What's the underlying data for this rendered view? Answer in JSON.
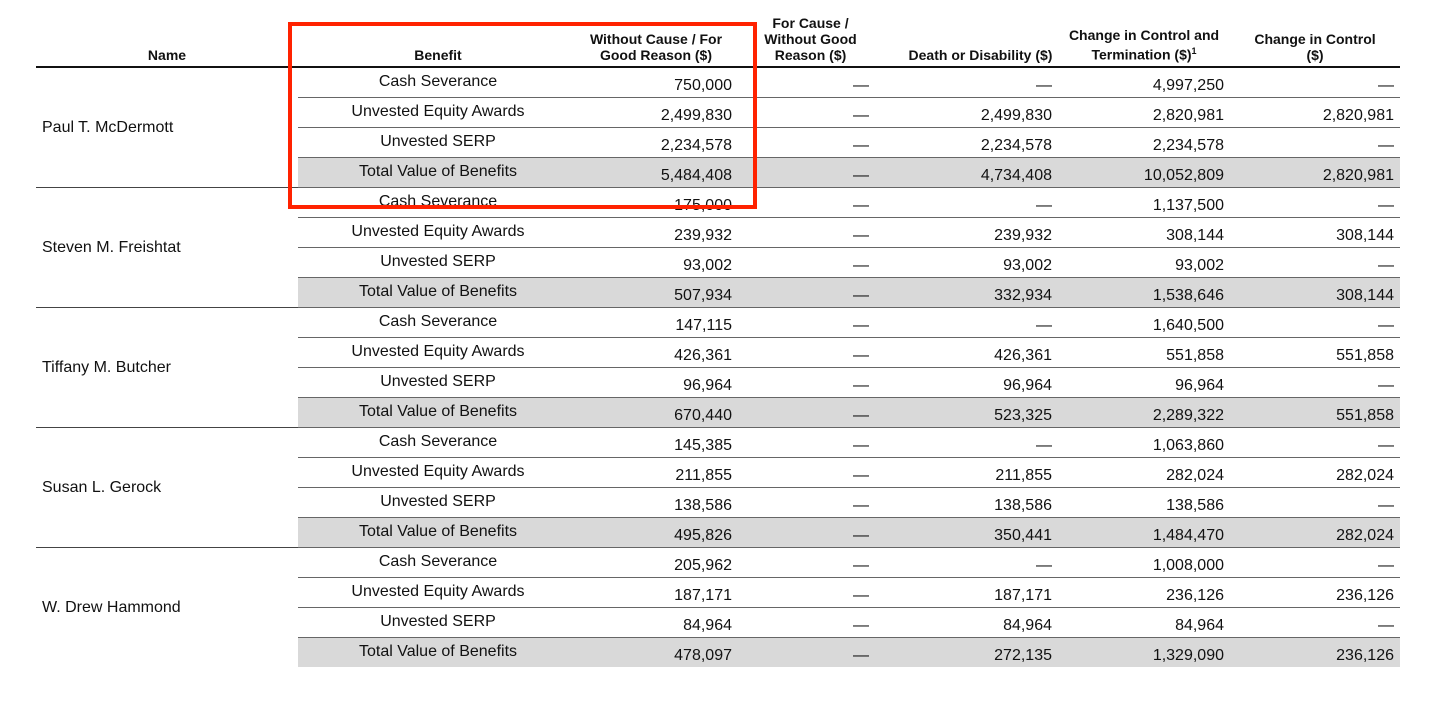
{
  "header": {
    "name": "Name",
    "benefit": "Benefit",
    "columns": [
      "Without Cause / For Good Reason ($)",
      "For Cause / Without Good Reason ($)",
      "Death or Disability ($)",
      "Change in Control and Termination ($)",
      "Change in Control ($)"
    ],
    "footnote_mark": "1"
  },
  "groups": [
    {
      "name": "Paul T. McDermott",
      "rows": [
        {
          "benefit": "Cash Severance",
          "values": [
            "750,000",
            "—",
            "—",
            "4,997,250",
            "—"
          ]
        },
        {
          "benefit": "Unvested Equity Awards",
          "values": [
            "2,499,830",
            "—",
            "2,499,830",
            "2,820,981",
            "2,820,981"
          ]
        },
        {
          "benefit": "Unvested SERP",
          "values": [
            "2,234,578",
            "—",
            "2,234,578",
            "2,234,578",
            "—"
          ]
        },
        {
          "benefit": "Total Value of Benefits",
          "values": [
            "5,484,408",
            "—",
            "4,734,408",
            "10,052,809",
            "2,820,981"
          ]
        }
      ]
    },
    {
      "name": "Steven M. Freishtat",
      "rows": [
        {
          "benefit": "Cash Severance",
          "values": [
            "175,000",
            "—",
            "—",
            "1,137,500",
            "—"
          ]
        },
        {
          "benefit": "Unvested Equity Awards",
          "values": [
            "239,932",
            "—",
            "239,932",
            "308,144",
            "308,144"
          ]
        },
        {
          "benefit": "Unvested SERP",
          "values": [
            "93,002",
            "—",
            "93,002",
            "93,002",
            "—"
          ]
        },
        {
          "benefit": "Total Value of Benefits",
          "values": [
            "507,934",
            "—",
            "332,934",
            "1,538,646",
            "308,144"
          ]
        }
      ]
    },
    {
      "name": "Tiffany M. Butcher",
      "rows": [
        {
          "benefit": "Cash Severance",
          "values": [
            "147,115",
            "—",
            "—",
            "1,640,500",
            "—"
          ]
        },
        {
          "benefit": "Unvested Equity Awards",
          "values": [
            "426,361",
            "—",
            "426,361",
            "551,858",
            "551,858"
          ]
        },
        {
          "benefit": "Unvested SERP",
          "values": [
            "96,964",
            "—",
            "96,964",
            "96,964",
            "—"
          ]
        },
        {
          "benefit": "Total Value of Benefits",
          "values": [
            "670,440",
            "—",
            "523,325",
            "2,289,322",
            "551,858"
          ]
        }
      ]
    },
    {
      "name": "Susan L. Gerock",
      "rows": [
        {
          "benefit": "Cash Severance",
          "values": [
            "145,385",
            "—",
            "—",
            "1,063,860",
            "—"
          ]
        },
        {
          "benefit": "Unvested Equity Awards",
          "values": [
            "211,855",
            "—",
            "211,855",
            "282,024",
            "282,024"
          ]
        },
        {
          "benefit": "Unvested SERP",
          "values": [
            "138,586",
            "—",
            "138,586",
            "138,586",
            "—"
          ]
        },
        {
          "benefit": "Total Value of Benefits",
          "values": [
            "495,826",
            "—",
            "350,441",
            "1,484,470",
            "282,024"
          ]
        }
      ]
    },
    {
      "name": "W. Drew Hammond",
      "rows": [
        {
          "benefit": "Cash Severance",
          "values": [
            "205,962",
            "—",
            "—",
            "1,008,000",
            "—"
          ]
        },
        {
          "benefit": "Unvested Equity Awards",
          "values": [
            "187,171",
            "—",
            "187,171",
            "236,126",
            "236,126"
          ]
        },
        {
          "benefit": "Unvested SERP",
          "values": [
            "84,964",
            "—",
            "84,964",
            "84,964",
            "—"
          ]
        },
        {
          "benefit": "Total Value of Benefits",
          "values": [
            "478,097",
            "—",
            "272,135",
            "1,329,090",
            "236,126"
          ]
        }
      ]
    }
  ],
  "colors": {
    "highlight": "#ff2200",
    "total_row": "#d9d9d9"
  }
}
